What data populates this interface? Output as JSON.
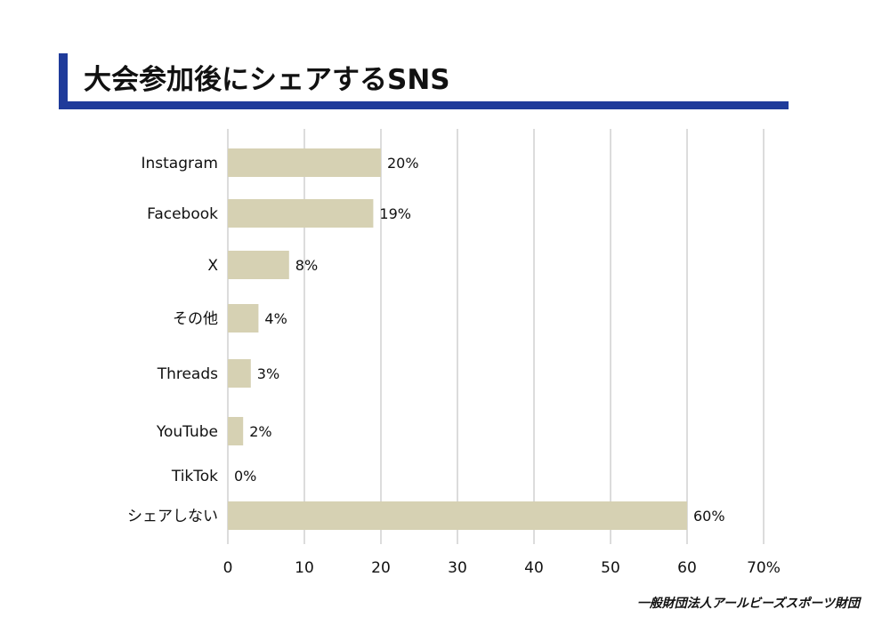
{
  "page": {
    "title": "大会参加後にシェアするSNS",
    "footer": "一般財団法人アールビーズスポーツ財団"
  },
  "colors": {
    "accent": "#1f3b9a",
    "bar": "#d6d1b3",
    "grid": "#d0d0d0"
  },
  "chart_data": {
    "type": "bar",
    "orientation": "horizontal",
    "categories": [
      "Instagram",
      "Facebook",
      "X",
      "その他",
      "Threads",
      "YouTube",
      "TikTok",
      "シェアしない"
    ],
    "values": [
      20,
      19,
      8,
      4,
      3,
      2,
      0,
      60
    ],
    "data_labels": [
      "20%",
      "19%",
      "8%",
      "4%",
      "3%",
      "2%",
      "0%",
      "60%"
    ],
    "x_ticks": [
      "0",
      "10",
      "20",
      "30",
      "40",
      "50",
      "60",
      "70%"
    ],
    "xlim": [
      0,
      70
    ],
    "grid": true,
    "legend": false
  }
}
